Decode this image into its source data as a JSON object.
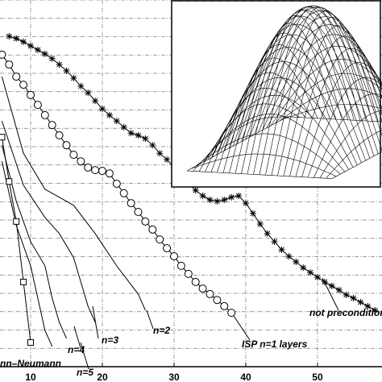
{
  "chart_data": {
    "type": "line",
    "xlim": [
      5.73,
      58.99
    ],
    "xticks": [
      10,
      20,
      30,
      40,
      50
    ],
    "ylim": [
      -10,
      0
    ],
    "yticks": [
      -10,
      -9.5,
      -9,
      -8.5,
      -8,
      -7.5,
      -7,
      -6.5,
      -6,
      -5.5,
      -5,
      -4.5,
      -4,
      -3.5,
      -3,
      -2.5,
      -2,
      -1.5,
      -1,
      -0.5,
      0
    ],
    "grid": true,
    "series": [
      {
        "name": "not preconditioned",
        "color": "#000",
        "marker": "star",
        "x": [
          7,
          8,
          9,
          10,
          11,
          12,
          13,
          14,
          15,
          16,
          17,
          18,
          19,
          20,
          21,
          22,
          23,
          24,
          25,
          26,
          27,
          28,
          29,
          30,
          31,
          32,
          33,
          34,
          35,
          36,
          37,
          38,
          39,
          40,
          41,
          42,
          43,
          44,
          45,
          46,
          47,
          48,
          49,
          50,
          51,
          52,
          53,
          54,
          55,
          56,
          57,
          58
        ],
        "values": [
          -0.99,
          -1.05,
          -1.14,
          -1.25,
          -1.36,
          -1.47,
          -1.6,
          -1.76,
          -1.93,
          -2.13,
          -2.35,
          -2.53,
          -2.75,
          -2.97,
          -3.14,
          -3.3,
          -3.47,
          -3.63,
          -3.69,
          -3.78,
          -3.96,
          -4.18,
          -4.35,
          -4.57,
          -4.79,
          -5.01,
          -5.19,
          -5.34,
          -5.45,
          -5.49,
          -5.45,
          -5.38,
          -5.34,
          -5.54,
          -5.82,
          -6.11,
          -6.37,
          -6.59,
          -6.81,
          -6.99,
          -7.14,
          -7.3,
          -7.43,
          -7.56,
          -7.69,
          -7.8,
          -7.91,
          -8.04,
          -8.13,
          -8.24,
          -8.35,
          -8.46
        ]
      },
      {
        "name": "ISP n=1 layers",
        "color": "#000",
        "marker": "circle",
        "x": [
          6,
          7,
          8,
          9,
          10,
          11,
          12,
          13,
          14,
          15,
          16,
          17,
          18,
          19,
          20,
          21,
          22,
          23,
          24,
          25,
          26,
          27,
          28,
          29,
          30,
          31,
          32,
          33,
          34,
          35,
          36,
          37,
          38
        ],
        "values": [
          -1.49,
          -1.76,
          -2.09,
          -2.31,
          -2.59,
          -2.86,
          -3.14,
          -3.41,
          -3.69,
          -3.96,
          -4.22,
          -4.4,
          -4.57,
          -4.64,
          -4.66,
          -4.73,
          -5.01,
          -5.27,
          -5.54,
          -5.78,
          -6.04,
          -6.26,
          -6.53,
          -6.77,
          -6.99,
          -7.25,
          -7.47,
          -7.69,
          -7.87,
          -8.02,
          -8.18,
          -8.35,
          -8.53
        ]
      },
      {
        "name": "n=2",
        "color": "#000",
        "marker": "none",
        "x": [
          6,
          9,
          12,
          16,
          19,
          22,
          25,
          26
        ],
        "values": [
          -2.09,
          -4.18,
          -5.16,
          -5.6,
          -6.37,
          -7.25,
          -8.02,
          -8.46
        ]
      },
      {
        "name": "n=3",
        "color": "#000",
        "marker": "none",
        "x": [
          6,
          9,
          12,
          14,
          16,
          17,
          18,
          19
        ],
        "values": [
          -3.3,
          -5.05,
          -5.93,
          -6.37,
          -7.03,
          -7.69,
          -8.35,
          -8.79
        ]
      },
      {
        "name": "n=4",
        "color": "#000",
        "marker": "none",
        "x": [
          6,
          8,
          10,
          12,
          13,
          14,
          15
        ],
        "values": [
          -3.96,
          -5.49,
          -6.59,
          -7.25,
          -8.13,
          -8.79,
          -9.23
        ]
      },
      {
        "name": "n=5",
        "color": "#000",
        "marker": "none",
        "x": [
          6,
          8,
          10,
          11,
          12,
          13
        ],
        "values": [
          -4.4,
          -6.15,
          -7.25,
          -8.13,
          -9.01,
          -9.45
        ]
      },
      {
        "name": "nn–Neumann",
        "color": "#000",
        "marker": "square",
        "x": [
          6,
          7,
          8,
          9,
          10
        ],
        "values": [
          -3.74,
          -4.95,
          -6.04,
          -7.69,
          -9.34
        ]
      }
    ]
  }
}
